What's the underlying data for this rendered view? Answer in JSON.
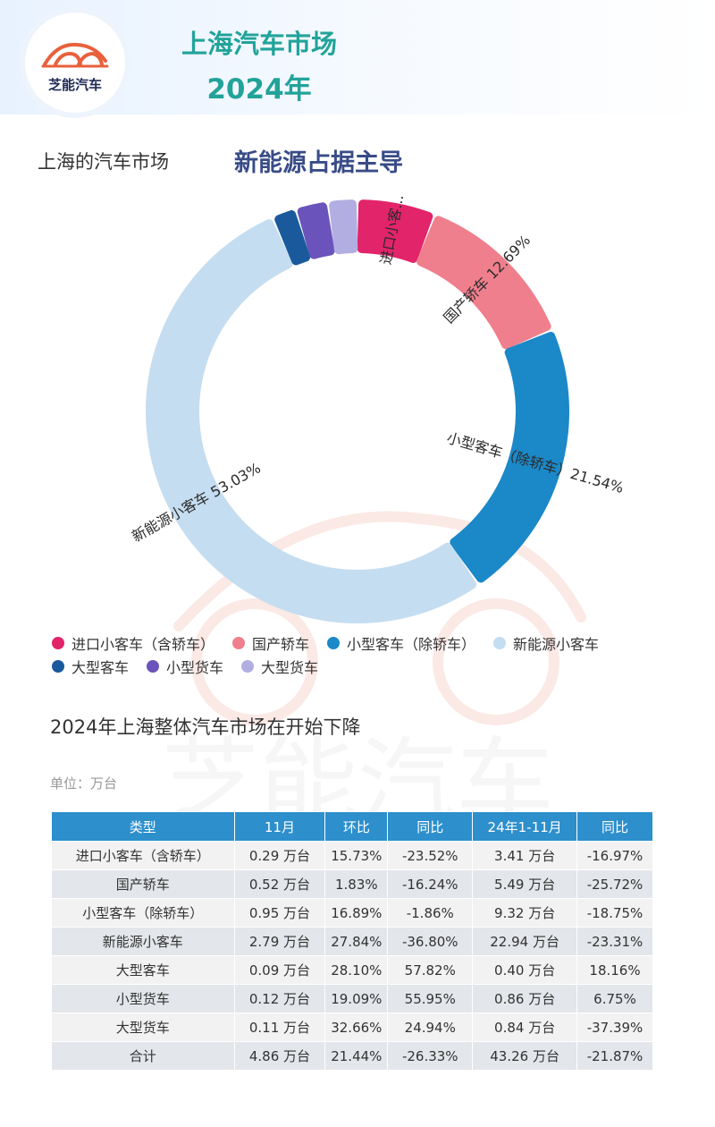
{
  "header": {
    "logo_text": "芝能汽车",
    "title_line1": "上海汽车市场",
    "title_line2": "2024年"
  },
  "section": {
    "title": "上海的汽车市场",
    "tagline": "新能源占据主导"
  },
  "chart_data": {
    "type": "pie",
    "variant": "donut",
    "categories": [
      "进口小客车（含轿车）",
      "国产轿车",
      "小型客车（除轿车）",
      "新能源小客车",
      "大型客车",
      "小型货车",
      "大型货车"
    ],
    "values": [
      5.96,
      12.69,
      21.54,
      53.03,
      1.85,
      2.47,
      2.26
    ],
    "value_unit": "%",
    "slice_labels": [
      "进口小客...",
      "国产轿车 12.69%",
      "小型客车（除轿车）21.54%",
      "新能源小客车 53.03%",
      "",
      "",
      ""
    ],
    "colors": [
      "#e2246a",
      "#ef7f8d",
      "#1b88c8",
      "#c5ddf0",
      "#1a5a9c",
      "#6a54bb",
      "#b3aee2"
    ],
    "legend_position": "bottom",
    "legend_rows": [
      [
        "进口小客车（含轿车）",
        "国产轿车",
        "小型客车（除轿车）",
        "新能源小客车"
      ],
      [
        "大型客车",
        "小型货车",
        "大型货车"
      ]
    ]
  },
  "table_section": {
    "title": "2024年上海整体汽车市场在开始下降",
    "unit": "单位：万台",
    "columns": [
      "类型",
      "11月",
      "环比",
      "同比",
      "24年1-11月",
      "同比"
    ],
    "rows": [
      [
        "进口小客车（含轿车）",
        "0.29 万台",
        "15.73%",
        "-23.52%",
        "3.41 万台",
        "-16.97%"
      ],
      [
        "国产轿车",
        "0.52 万台",
        "1.83%",
        "-16.24%",
        "5.49 万台",
        "-25.72%"
      ],
      [
        "小型客车（除轿车）",
        "0.95 万台",
        "16.89%",
        "-1.86%",
        "9.32 万台",
        "-18.75%"
      ],
      [
        "新能源小客车",
        "2.79 万台",
        "27.84%",
        "-36.80%",
        "22.94 万台",
        "-23.31%"
      ],
      [
        "大型客车",
        "0.09 万台",
        "28.10%",
        "57.82%",
        "0.40 万台",
        "18.16%"
      ],
      [
        "小型货车",
        "0.12 万台",
        "19.09%",
        "55.95%",
        "0.86 万台",
        "6.75%"
      ],
      [
        "大型货车",
        "0.11 万台",
        "32.66%",
        "24.94%",
        "0.84 万台",
        "-37.39%"
      ],
      [
        "合计",
        "4.86 万台",
        "21.44%",
        "-26.33%",
        "43.26 万台",
        "-21.87%"
      ]
    ]
  },
  "watermark": {
    "text": "芝能汽车",
    "color": "#f3d8d2"
  }
}
